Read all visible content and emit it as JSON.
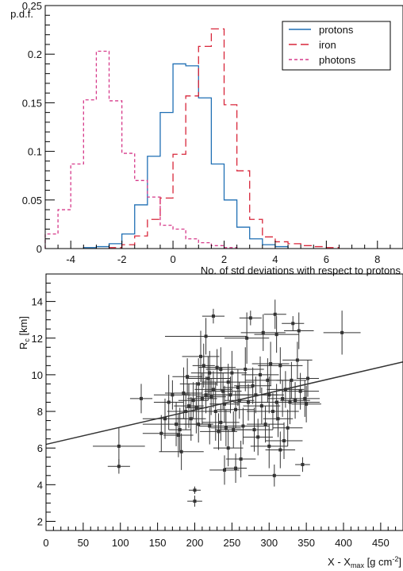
{
  "chart_data": [
    {
      "type": "step",
      "title": "",
      "xlabel": "No. of std deviations with respect to protons",
      "ylabel": "p.d.f.",
      "xlim": [
        -5,
        9
      ],
      "ylim": [
        0,
        0.25
      ],
      "xticks": [
        "-4",
        "-2",
        "0",
        "2",
        "4",
        "6",
        "8"
      ],
      "yticks": [
        "0",
        "0.05",
        "0.1",
        "0.15",
        "0.2",
        "0.25"
      ],
      "legend_position": "top-right",
      "bin_width": 0.5,
      "series": [
        {
          "name": "protons",
          "color": "#1f6fb4",
          "dash": "solid",
          "bins": [
            [
              -3.5,
              0.001
            ],
            [
              -3.0,
              0.002
            ],
            [
              -2.5,
              0.005
            ],
            [
              -2.0,
              0.015
            ],
            [
              -1.5,
              0.045
            ],
            [
              -1.0,
              0.095
            ],
            [
              -0.5,
              0.14
            ],
            [
              0.0,
              0.19
            ],
            [
              0.5,
              0.188
            ],
            [
              1.0,
              0.155
            ],
            [
              1.5,
              0.087
            ],
            [
              2.0,
              0.05
            ],
            [
              2.5,
              0.022
            ],
            [
              3.0,
              0.01
            ],
            [
              3.5,
              0.004
            ],
            [
              4.0,
              0.002
            ]
          ]
        },
        {
          "name": "iron",
          "color": "#d8263a",
          "dash": "long",
          "bins": [
            [
              -2.5,
              0.001
            ],
            [
              -2.0,
              0.004
            ],
            [
              -1.5,
              0.013
            ],
            [
              -1.0,
              0.03
            ],
            [
              -0.5,
              0.052
            ],
            [
              0.0,
              0.097
            ],
            [
              0.5,
              0.157
            ],
            [
              1.0,
              0.208
            ],
            [
              1.5,
              0.226
            ],
            [
              2.0,
              0.148
            ],
            [
              2.5,
              0.08
            ],
            [
              3.0,
              0.03
            ],
            [
              3.5,
              0.012
            ],
            [
              4.0,
              0.007
            ],
            [
              4.5,
              0.005
            ],
            [
              5.0,
              0.003
            ],
            [
              5.5,
              0.002
            ],
            [
              6.0,
              0.001
            ]
          ]
        },
        {
          "name": "photons",
          "color": "#d63a8a",
          "dash": "short",
          "bins": [
            [
              -5.0,
              0.015
            ],
            [
              -4.5,
              0.04
            ],
            [
              -4.0,
              0.087
            ],
            [
              -3.5,
              0.153
            ],
            [
              -3.0,
              0.203
            ],
            [
              -2.5,
              0.152
            ],
            [
              -2.0,
              0.098
            ],
            [
              -1.5,
              0.07
            ],
            [
              -1.0,
              0.053
            ],
            [
              -0.5,
              0.024
            ],
            [
              0.0,
              0.02
            ],
            [
              0.5,
              0.01
            ],
            [
              1.0,
              0.006
            ],
            [
              1.5,
              0.003
            ],
            [
              2.0,
              0.001
            ]
          ]
        }
      ]
    },
    {
      "type": "scatter",
      "title": "",
      "xlabel": "X - X",
      "xlabel_sub": "max",
      "xlabel_unit": " [g cm",
      "xlabel_sup": "-2",
      "xlabel_close": "]",
      "ylabel": "R",
      "ylabel_sub": "c",
      "ylabel_unit": " [km]",
      "xlim": [
        0,
        480
      ],
      "ylim": [
        1.5,
        15.5
      ],
      "xticks": [
        "0",
        "50",
        "100",
        "150",
        "200",
        "250",
        "300",
        "350",
        "400",
        "450"
      ],
      "yticks": [
        "2",
        "4",
        "6",
        "8",
        "10",
        "12",
        "14"
      ],
      "fit_line": {
        "x": [
          0,
          480
        ],
        "y": [
          6.2,
          10.7
        ]
      },
      "point_color": "#333333",
      "points": [
        [
          98,
          6.1,
          35,
          1.0
        ],
        [
          98,
          5.0,
          15,
          0.4
        ],
        [
          128,
          8.7,
          15,
          0.8
        ],
        [
          155,
          6.8,
          25,
          1.0
        ],
        [
          160,
          7.6,
          30,
          1.1
        ],
        [
          165,
          8.5,
          20,
          1.5
        ],
        [
          170,
          8.9,
          25,
          0.8
        ],
        [
          175,
          7.3,
          45,
          1.2
        ],
        [
          178,
          6.7,
          20,
          1.2
        ],
        [
          180,
          7.0,
          15,
          1.2
        ],
        [
          182,
          5.8,
          30,
          1.0
        ],
        [
          185,
          9.0,
          25,
          1.4
        ],
        [
          188,
          8.0,
          25,
          1.0
        ],
        [
          190,
          9.9,
          20,
          1.0
        ],
        [
          192,
          8.3,
          20,
          1.2
        ],
        [
          195,
          7.6,
          20,
          1.2
        ],
        [
          198,
          8.6,
          20,
          1.0
        ],
        [
          200,
          3.7,
          8,
          0.2
        ],
        [
          200,
          3.1,
          10,
          0.3
        ],
        [
          202,
          8.2,
          15,
          1.4
        ],
        [
          205,
          9.5,
          25,
          1.4
        ],
        [
          205,
          7.3,
          20,
          1.0
        ],
        [
          208,
          11.0,
          25,
          1.4
        ],
        [
          210,
          8.7,
          20,
          1.4
        ],
        [
          212,
          10.5,
          15,
          1.2
        ],
        [
          215,
          8.9,
          30,
          1.0
        ],
        [
          215,
          12.1,
          55,
          1.0
        ],
        [
          218,
          9.8,
          30,
          1.2
        ],
        [
          220,
          10.1,
          25,
          1.2
        ],
        [
          220,
          7.2,
          15,
          1.0
        ],
        [
          222,
          8.8,
          20,
          1.0
        ],
        [
          225,
          13.2,
          15,
          0.4
        ],
        [
          225,
          9.2,
          25,
          1.0
        ],
        [
          228,
          8.0,
          20,
          1.6
        ],
        [
          230,
          10.4,
          25,
          1.0
        ],
        [
          232,
          6.9,
          25,
          1.0
        ],
        [
          235,
          7.4,
          25,
          1.0
        ],
        [
          235,
          10.3,
          20,
          1.2
        ],
        [
          238,
          9.1,
          25,
          1.0
        ],
        [
          240,
          4.8,
          20,
          0.8
        ],
        [
          240,
          8.4,
          20,
          1.0
        ],
        [
          242,
          7.1,
          20,
          1.0
        ],
        [
          245,
          9.6,
          35,
          1.0
        ],
        [
          245,
          6.0,
          20,
          1.0
        ],
        [
          248,
          8.9,
          30,
          1.0
        ],
        [
          250,
          10.1,
          20,
          1.2
        ],
        [
          252,
          7.0,
          25,
          1.0
        ],
        [
          255,
          4.9,
          15,
          0.8
        ],
        [
          255,
          8.1,
          25,
          1.0
        ],
        [
          258,
          9.3,
          20,
          1.0
        ],
        [
          260,
          8.6,
          20,
          1.0
        ],
        [
          262,
          5.4,
          20,
          1.0
        ],
        [
          265,
          7.2,
          35,
          1.0
        ],
        [
          268,
          10.3,
          25,
          1.2
        ],
        [
          270,
          12.0,
          30,
          1.4
        ],
        [
          272,
          8.5,
          20,
          1.0
        ],
        [
          275,
          13.1,
          15,
          0.4
        ],
        [
          278,
          9.4,
          25,
          1.0
        ],
        [
          280,
          7.0,
          25,
          1.2
        ],
        [
          282,
          8.9,
          30,
          1.0
        ],
        [
          285,
          6.6,
          20,
          1.0
        ],
        [
          288,
          10.0,
          25,
          1.0
        ],
        [
          290,
          8.3,
          25,
          1.0
        ],
        [
          292,
          12.3,
          30,
          1.0
        ],
        [
          295,
          7.3,
          25,
          1.0
        ],
        [
          298,
          9.7,
          30,
          1.2
        ],
        [
          300,
          6.1,
          25,
          1.2
        ],
        [
          300,
          8.9,
          20,
          1.0
        ],
        [
          302,
          10.6,
          25,
          1.2
        ],
        [
          305,
          8.0,
          35,
          1.0
        ],
        [
          307,
          4.5,
          35,
          0.6
        ],
        [
          308,
          13.3,
          15,
          0.8
        ],
        [
          310,
          12.2,
          30,
          1.0
        ],
        [
          310,
          8.5,
          25,
          1.0
        ],
        [
          312,
          7.6,
          20,
          1.0
        ],
        [
          315,
          5.9,
          20,
          1.0
        ],
        [
          315,
          10.5,
          30,
          1.0
        ],
        [
          318,
          8.7,
          20,
          1.0
        ],
        [
          320,
          6.4,
          25,
          1.0
        ],
        [
          322,
          9.2,
          25,
          1.0
        ],
        [
          325,
          7.1,
          20,
          1.0
        ],
        [
          328,
          8.5,
          40,
          1.2
        ],
        [
          330,
          9.7,
          20,
          1.0
        ],
        [
          332,
          12.8,
          15,
          0.4
        ],
        [
          335,
          8.6,
          20,
          1.0
        ],
        [
          338,
          10.8,
          20,
          1.0
        ],
        [
          340,
          12.4,
          20,
          1.0
        ],
        [
          342,
          9.1,
          25,
          1.0
        ],
        [
          345,
          5.1,
          10,
          0.4
        ],
        [
          348,
          8.7,
          20,
          1.0
        ],
        [
          350,
          8.4,
          20,
          1.0
        ],
        [
          352,
          9.8,
          15,
          1.0
        ],
        [
          398,
          12.3,
          25,
          1.2
        ]
      ]
    }
  ]
}
